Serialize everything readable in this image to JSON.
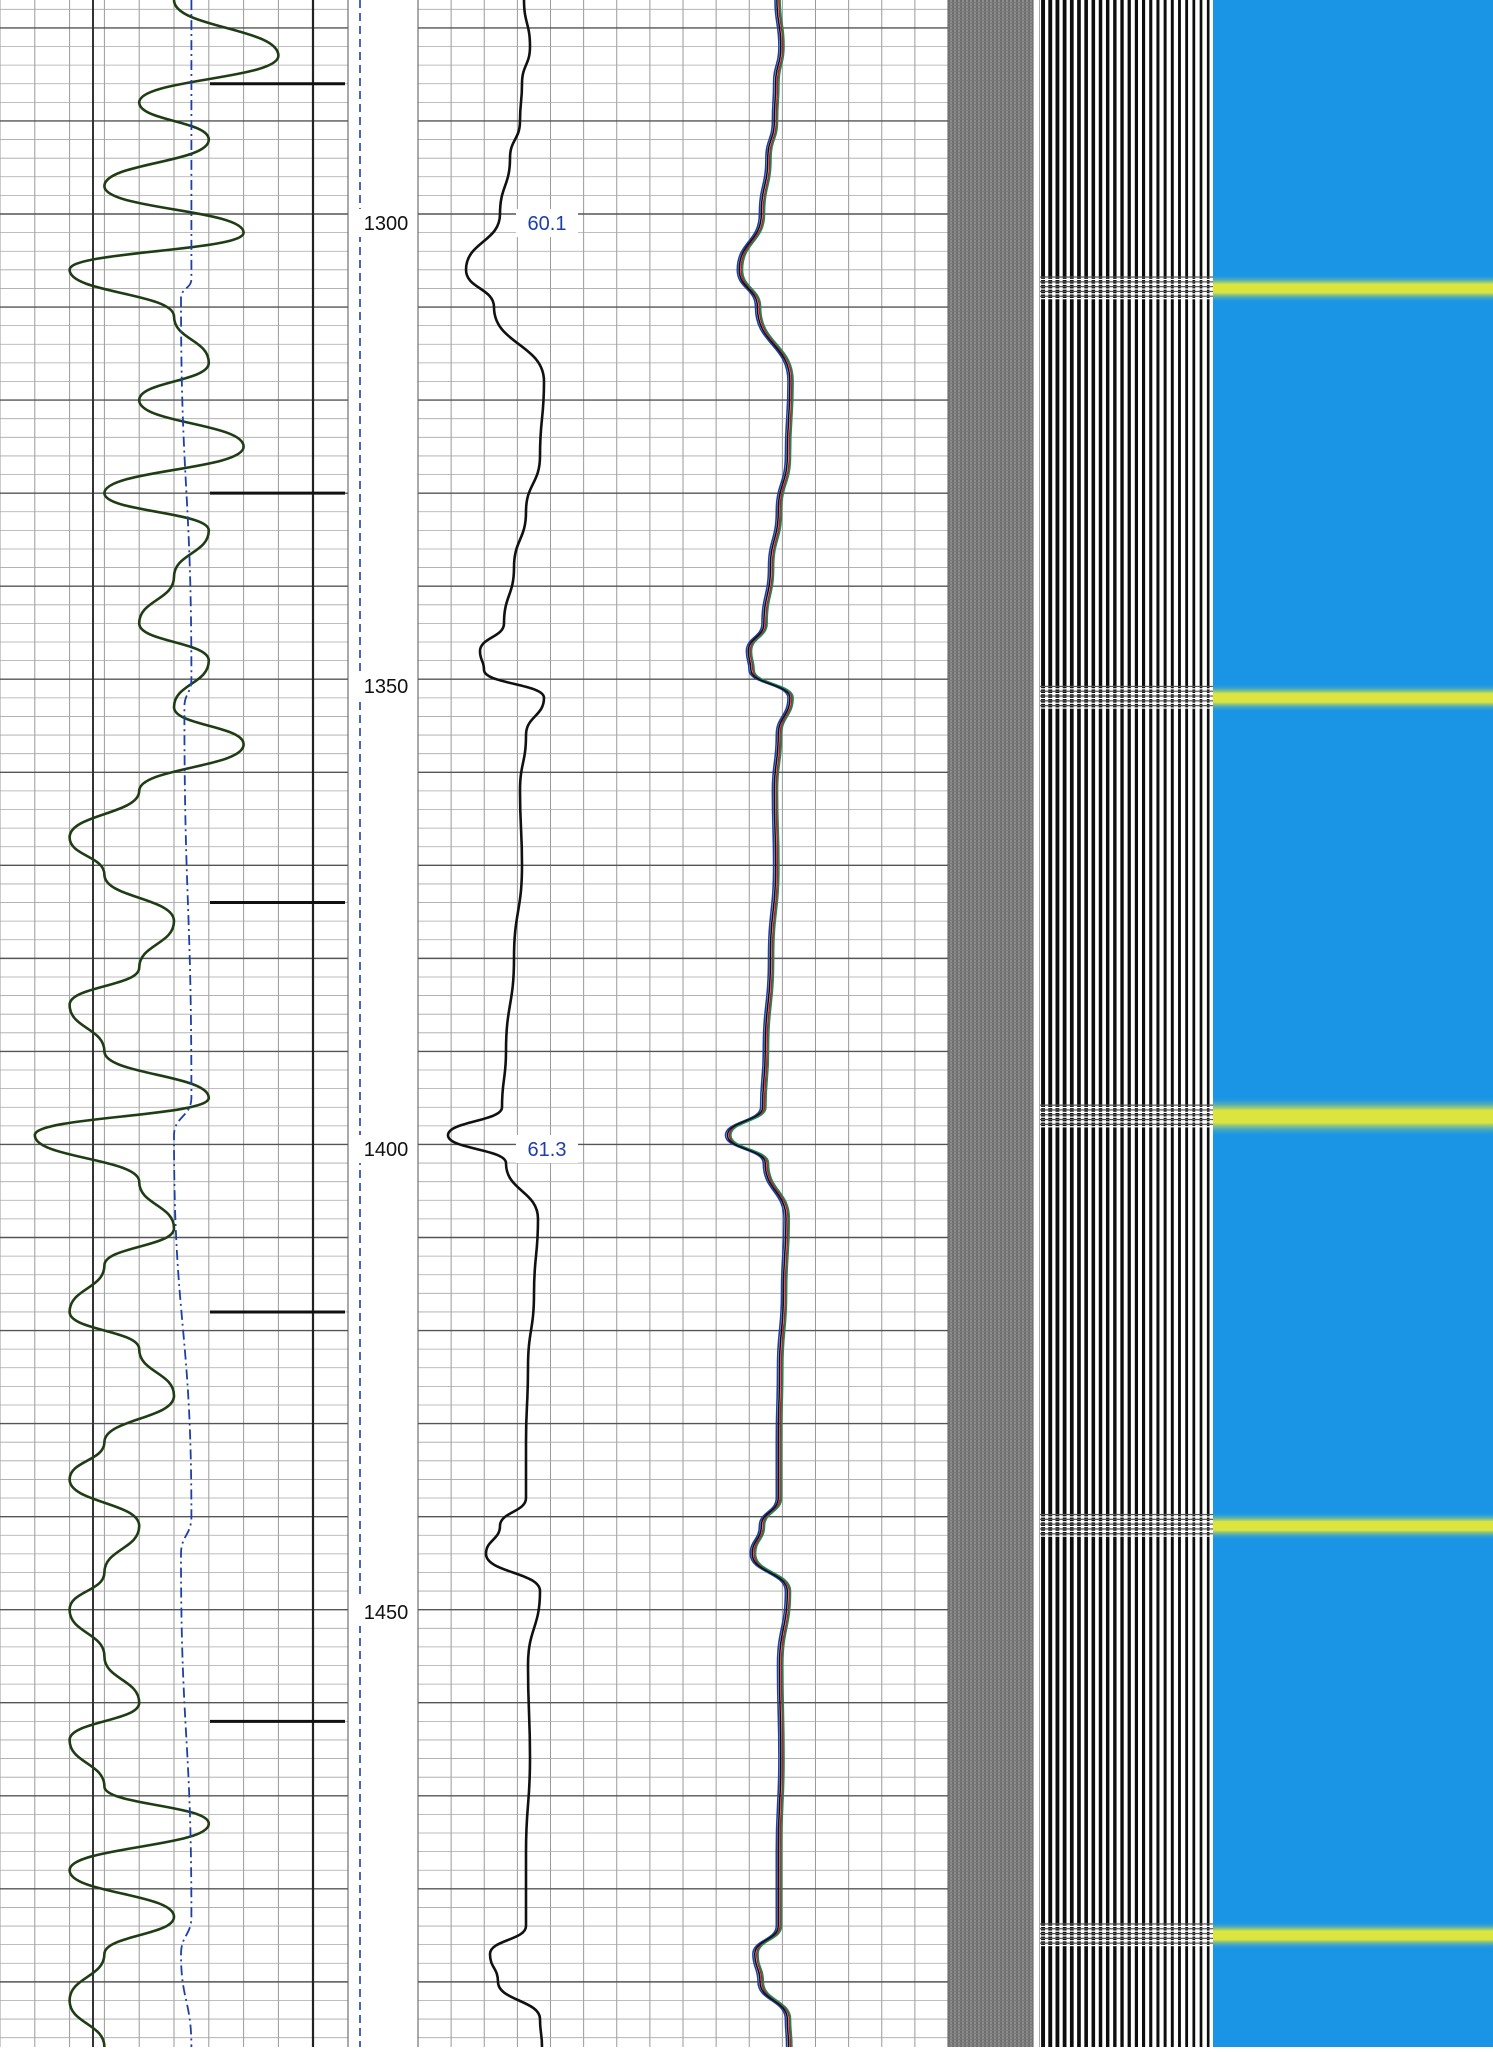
{
  "chart_data": {
    "type": "line",
    "title": "",
    "xlabel": "",
    "ylabel": "",
    "depth_axis": {
      "range": [
        1277,
        1497
      ],
      "tick_labels": [
        "1300",
        "1350",
        "1400",
        "1450"
      ],
      "ticks": [
        1300,
        1350,
        1400,
        1450
      ]
    },
    "grid": true,
    "tracks": [
      {
        "name": "",
        "series": [
          {
            "name": "",
            "color": "#1f3d14",
            "depth": [
              1277,
              1283,
              1288,
              1292,
              1297,
              1302,
              1306,
              1311,
              1316,
              1320,
              1325,
              1330,
              1334,
              1339,
              1344,
              1348,
              1353,
              1357,
              1362,
              1367,
              1371,
              1376,
              1381,
              1385,
              1390,
              1395,
              1399,
              1404,
              1409,
              1413,
              1418,
              1422,
              1427,
              1432,
              1436,
              1441,
              1446,
              1450,
              1455,
              1460,
              1464,
              1469,
              1473,
              1478,
              1483,
              1487,
              1492,
              1497
            ],
            "values": [
              5,
              8,
              4,
              6,
              3,
              7,
              2,
              5,
              6,
              4,
              7,
              3,
              6,
              5,
              4,
              6,
              5,
              7,
              4,
              2,
              3,
              5,
              4,
              2,
              3,
              6,
              1,
              4,
              5,
              3,
              2,
              4,
              5,
              3,
              2,
              4,
              3,
              2,
              3,
              4,
              2,
              3,
              6,
              2,
              5,
              3,
              2,
              3
            ]
          },
          {
            "name": "",
            "color": "#1d3fa8",
            "style": "dash-dot",
            "depth": [
              1277,
              1307,
              1309,
              1350,
              1353,
              1395,
              1399,
              1440,
              1444,
              1483,
              1487,
              1497
            ],
            "values": [
              5.5,
              5.5,
              5.2,
              5.5,
              5.3,
              5.5,
              5.0,
              5.5,
              5.2,
              5.5,
              5.2,
              5.5
            ]
          }
        ],
        "markers_depth": [
          1286,
          1330,
          1374,
          1418,
          1462
        ]
      },
      {
        "name": "",
        "series": [
          {
            "name": "",
            "color": "#111111",
            "depth": [
              1277,
              1282,
              1286,
              1290,
              1294,
              1300,
              1306,
              1310,
              1318,
              1326,
              1332,
              1338,
              1344,
              1347,
              1349,
              1352,
              1356,
              1362,
              1370,
              1380,
              1390,
              1396,
              1399,
              1402,
              1408,
              1416,
              1424,
              1432,
              1438,
              1441,
              1444,
              1448,
              1456,
              1466,
              1476,
              1484,
              1487,
              1490,
              1494,
              1497
            ],
            "values": [
              5.3,
              5.6,
              5.2,
              5.1,
              4.6,
              4.1,
              2.4,
              3.8,
              6.3,
              6.1,
              5.4,
              4.8,
              4.3,
              3.1,
              3.3,
              6.3,
              5.4,
              5.1,
              5.2,
              4.8,
              4.4,
              4.2,
              1.5,
              4.4,
              6.0,
              5.8,
              5.5,
              5.4,
              5.4,
              4.1,
              3.4,
              6.1,
              5.5,
              5.6,
              5.4,
              5.4,
              3.6,
              4.0,
              6.1,
              6.2
            ],
            "annotations": [
              {
                "depth": 1300,
                "text": "60.1"
              },
              {
                "depth": 1400,
                "text": "61.3"
              }
            ]
          }
        ]
      },
      {
        "name": "",
        "series": [
          {
            "name": "",
            "color": "#c8142b",
            "offset": 0.15
          },
          {
            "name": "",
            "color": "#1d3fa8",
            "offset": -0.15
          },
          {
            "name": "",
            "color": "#1a8a55",
            "offset": 0.25
          },
          {
            "name": "",
            "color": "#111111",
            "offset": 0
          }
        ]
      },
      {
        "name": "",
        "type": "variable-density"
      },
      {
        "name": "",
        "type": "waveform"
      },
      {
        "name": "",
        "type": "heatmap",
        "background_color": "#1a95e6",
        "highlight_color": "#f2ee2a",
        "bands_depth": [
          1308,
          1352,
          1397,
          1441,
          1485
        ]
      }
    ]
  }
}
